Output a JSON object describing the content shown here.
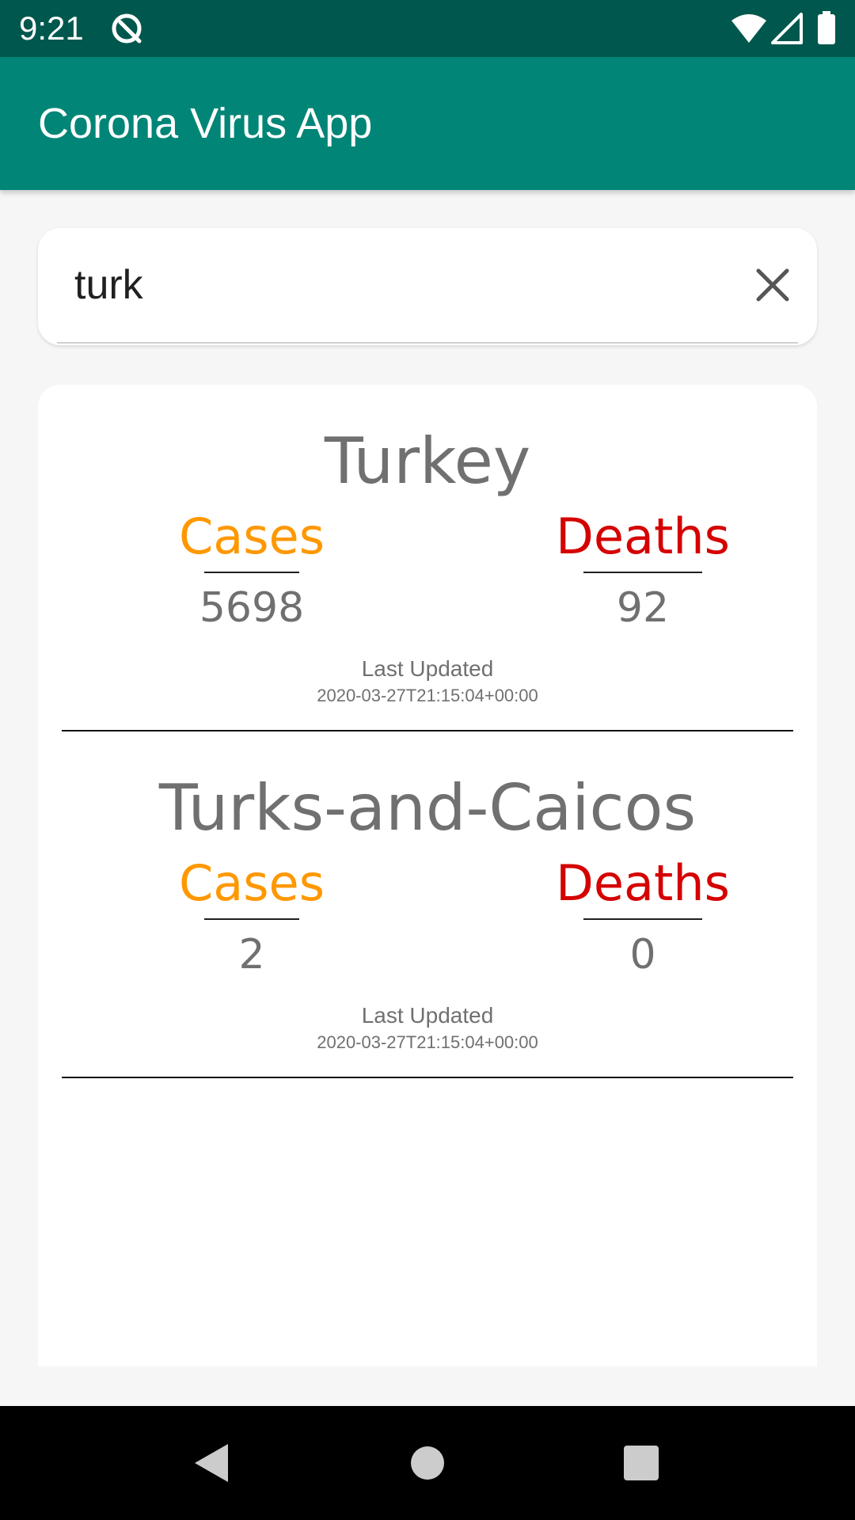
{
  "status_bar": {
    "time": "9:21",
    "background": "#00574d"
  },
  "app_bar": {
    "title": "Corona Virus App",
    "background": "#008577"
  },
  "search": {
    "value": "turk",
    "clear_icon": "close-icon"
  },
  "results": [
    {
      "country": "Turkey",
      "cases_label": "Cases",
      "cases": "5698",
      "deaths_label": "Deaths",
      "deaths": "92",
      "updated_label": "Last Updated",
      "updated": "2020-03-27T21:15:04+00:00"
    },
    {
      "country": "Turks-and-Caicos",
      "cases_label": "Cases",
      "cases": "2",
      "deaths_label": "Deaths",
      "deaths": "0",
      "updated_label": "Last Updated",
      "updated": "2020-03-27T21:15:04+00:00"
    }
  ],
  "colors": {
    "cases": "#ff9800",
    "deaths": "#d50000",
    "text_grey": "#707070"
  },
  "nav": {
    "back_icon": "back-triangle-icon",
    "home_icon": "home-circle-icon",
    "recents_icon": "recents-square-icon"
  }
}
